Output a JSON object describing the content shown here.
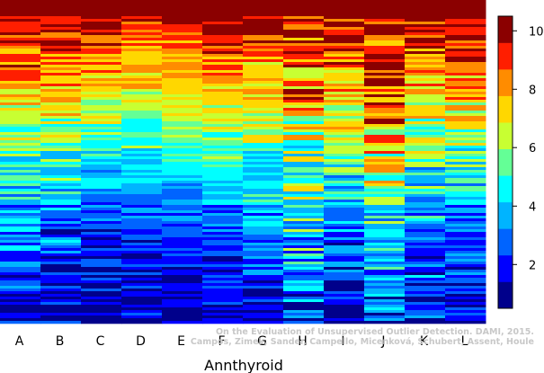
{
  "chart_data": {
    "type": "heatmap",
    "xlabel": "Annthyroid",
    "categories": [
      "A",
      "B",
      "C",
      "D",
      "E",
      "F",
      "G",
      "H",
      "I",
      "J",
      "K",
      "L"
    ],
    "colorbar": {
      "range": [
        0.5,
        10.5
      ],
      "ticks": [
        2,
        4,
        6,
        8,
        10
      ],
      "colors": [
        "#00008b",
        "#0000ff",
        "#0064ff",
        "#00b4ff",
        "#00ffff",
        "#64ff96",
        "#c8ff32",
        "#ffd700",
        "#ff8c00",
        "#ff1e00",
        "#8b0000"
      ]
    },
    "column_profiles": [
      {
        "name": "A",
        "breakpoints": [
          0.0,
          0.1,
          0.3,
          0.5,
          0.7,
          0.9,
          1.0
        ],
        "levels": [
          10.5,
          9.5,
          7.2,
          4.8,
          3.2,
          2.2,
          1.4
        ],
        "noise": 1.6
      },
      {
        "name": "B",
        "breakpoints": [
          0.0,
          0.1,
          0.3,
          0.5,
          0.7,
          0.9,
          1.0
        ],
        "levels": [
          10.5,
          9.3,
          7.0,
          4.8,
          3.0,
          2.0,
          1.3
        ],
        "noise": 1.7
      },
      {
        "name": "C",
        "breakpoints": [
          0.0,
          0.1,
          0.3,
          0.5,
          0.7,
          0.9,
          1.0
        ],
        "levels": [
          10.5,
          9.2,
          6.8,
          4.4,
          2.2,
          1.6,
          1.2
        ],
        "noise": 1.2
      },
      {
        "name": "D",
        "breakpoints": [
          0.0,
          0.1,
          0.3,
          0.5,
          0.7,
          0.9,
          1.0
        ],
        "levels": [
          10.5,
          8.8,
          6.6,
          4.6,
          2.2,
          1.7,
          1.3
        ],
        "noise": 1.0
      },
      {
        "name": "E",
        "breakpoints": [
          0.0,
          0.1,
          0.3,
          0.5,
          0.7,
          0.9,
          1.0
        ],
        "levels": [
          10.5,
          8.8,
          7.0,
          4.7,
          2.3,
          1.6,
          1.2
        ],
        "noise": 0.9
      },
      {
        "name": "F",
        "breakpoints": [
          0.0,
          0.1,
          0.3,
          0.5,
          0.7,
          0.9,
          1.0
        ],
        "levels": [
          10.5,
          9.2,
          7.0,
          4.9,
          2.6,
          1.8,
          1.3
        ],
        "noise": 1.1
      },
      {
        "name": "G",
        "breakpoints": [
          0.0,
          0.1,
          0.3,
          0.5,
          0.7,
          0.9,
          1.0
        ],
        "levels": [
          10.5,
          9.2,
          7.2,
          5.0,
          3.0,
          2.0,
          1.4
        ],
        "noise": 1.5
      },
      {
        "name": "H",
        "breakpoints": [
          0.0,
          0.1,
          0.3,
          0.5,
          0.7,
          0.9,
          1.0
        ],
        "levels": [
          10.5,
          9.4,
          7.6,
          5.6,
          4.2,
          3.0,
          2.4
        ],
        "noise": 2.3
      },
      {
        "name": "I",
        "breakpoints": [
          0.0,
          0.1,
          0.3,
          0.5,
          0.7,
          0.9,
          1.0
        ],
        "levels": [
          10.5,
          9.4,
          7.4,
          5.0,
          3.0,
          2.0,
          1.4
        ],
        "noise": 1.6
      },
      {
        "name": "J",
        "breakpoints": [
          0.0,
          0.1,
          0.3,
          0.5,
          0.7,
          0.9,
          1.0
        ],
        "levels": [
          10.5,
          9.8,
          9.2,
          6.5,
          4.6,
          3.0,
          2.0
        ],
        "noise": 2.2
      },
      {
        "name": "K",
        "breakpoints": [
          0.0,
          0.1,
          0.3,
          0.5,
          0.7,
          0.9,
          1.0
        ],
        "levels": [
          10.5,
          9.4,
          7.2,
          5.0,
          3.2,
          2.2,
          1.6
        ],
        "noise": 1.8
      },
      {
        "name": "L",
        "breakpoints": [
          0.0,
          0.1,
          0.3,
          0.5,
          0.7,
          0.9,
          1.0
        ],
        "levels": [
          10.5,
          9.4,
          7.4,
          5.0,
          3.0,
          2.0,
          1.4
        ],
        "noise": 1.5
      }
    ],
    "grid": false,
    "legend": "colorbar-right"
  },
  "watermark": {
    "line1": "On the Evaluation of Unsupervised Outlier Detection. DAMI, 2015.",
    "line2": "Campos, Zimek, Sander, Campello, Micenková, Schubert, Assent, Houle"
  }
}
